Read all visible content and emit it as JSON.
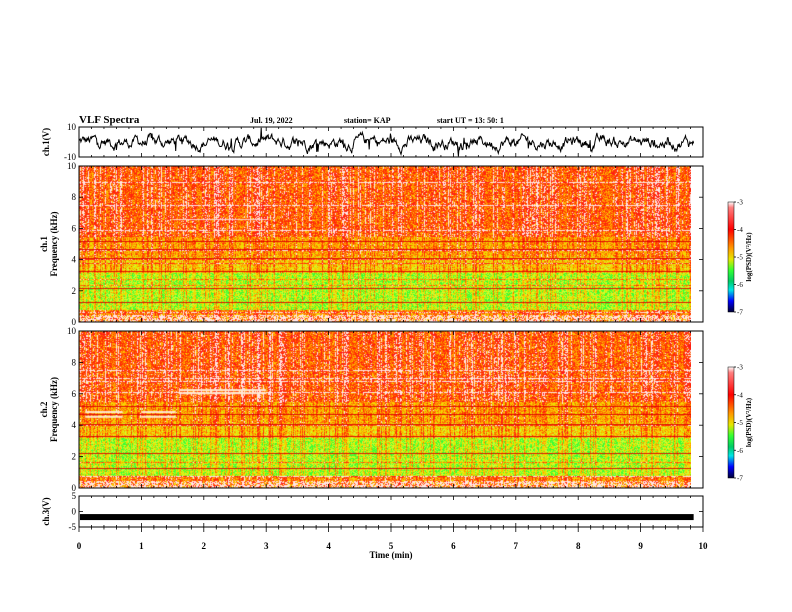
{
  "header": {
    "title": "VLF Spectra",
    "date": "Jul. 19, 2022",
    "station": "station= KAP",
    "start": "start UT = 13: 50: 1"
  },
  "chart_data": [
    {
      "type": "line",
      "panel": "ch1-voltage",
      "ylabel": "ch.1(V)",
      "ylim": [
        -10,
        10
      ],
      "y_ticks": [
        "10",
        "-10"
      ],
      "xlim": [
        0,
        10
      ],
      "color": "#000000"
    },
    {
      "type": "heatmap",
      "panel": "ch1-spectrogram",
      "ylabel": "ch.1\nFrequency (kHz)",
      "ylim": [
        0,
        10
      ],
      "y_ticks": [
        "0",
        "2",
        "4",
        "6",
        "8",
        "10"
      ],
      "xlim": [
        0,
        9.8
      ],
      "colorbar": {
        "label": "log(PSD)(V²/Hz)",
        "ticks": [
          "-3",
          "-4",
          "-5",
          "-6",
          "-7"
        ],
        "range": [
          -7,
          -3
        ]
      }
    },
    {
      "type": "heatmap",
      "panel": "ch2-spectrogram",
      "ylabel": "ch.2\nFrequency (kHz)",
      "ylim": [
        0,
        10
      ],
      "y_ticks": [
        "0",
        "2",
        "4",
        "6",
        "8",
        "10"
      ],
      "xlim": [
        0,
        9.8
      ],
      "colorbar": {
        "label": "log(PSD)(V²/Hz)",
        "ticks": [
          "-3",
          "-4",
          "-5",
          "-6",
          "-7"
        ],
        "range": [
          -7,
          -3
        ]
      }
    },
    {
      "type": "line",
      "panel": "ch3-voltage",
      "ylabel": "ch.3(V)",
      "ylim": [
        -5,
        5
      ],
      "y_ticks": [
        "5",
        "0",
        "-5"
      ],
      "xlim": [
        0,
        10
      ],
      "color": "#000000",
      "values_constant": -1.8
    }
  ],
  "x_axis": {
    "label": "Time (min)",
    "ticks": [
      "0",
      "1",
      "2",
      "3",
      "4",
      "5",
      "6",
      "7",
      "8",
      "9",
      "10"
    ],
    "range": [
      0,
      10
    ]
  },
  "colors": {
    "red": "#ff1a1a",
    "orange": "#ff9900",
    "yellow": "#e6e600",
    "green": "#33ff33",
    "cyan": "#00e5e5",
    "blue": "#0000ff",
    "black": "#000000"
  }
}
